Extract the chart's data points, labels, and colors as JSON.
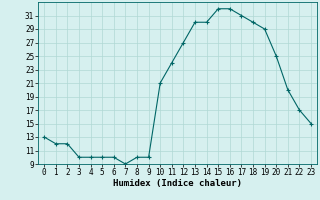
{
  "x": [
    0,
    1,
    2,
    3,
    4,
    5,
    6,
    7,
    8,
    9,
    10,
    11,
    12,
    13,
    14,
    15,
    16,
    17,
    18,
    19,
    20,
    21,
    22,
    23
  ],
  "y": [
    13,
    12,
    12,
    10,
    10,
    10,
    10,
    9,
    10,
    10,
    21,
    24,
    27,
    30,
    30,
    32,
    32,
    31,
    30,
    29,
    25,
    20,
    17,
    15
  ],
  "line_color": "#006666",
  "marker": "+",
  "marker_size": 3,
  "bg_color": "#d6f0ef",
  "grid_color": "#b0d8d4",
  "xlabel": "Humidex (Indice chaleur)",
  "ylim": [
    9,
    33
  ],
  "xlim": [
    -0.5,
    23.5
  ],
  "yticks": [
    9,
    11,
    13,
    15,
    17,
    19,
    21,
    23,
    25,
    27,
    29,
    31
  ],
  "xticks": [
    0,
    1,
    2,
    3,
    4,
    5,
    6,
    7,
    8,
    9,
    10,
    11,
    12,
    13,
    14,
    15,
    16,
    17,
    18,
    19,
    20,
    21,
    22,
    23
  ],
  "xlabel_fontsize": 6.5,
  "tick_fontsize": 5.5,
  "fig_width": 3.2,
  "fig_height": 2.0,
  "dpi": 100
}
